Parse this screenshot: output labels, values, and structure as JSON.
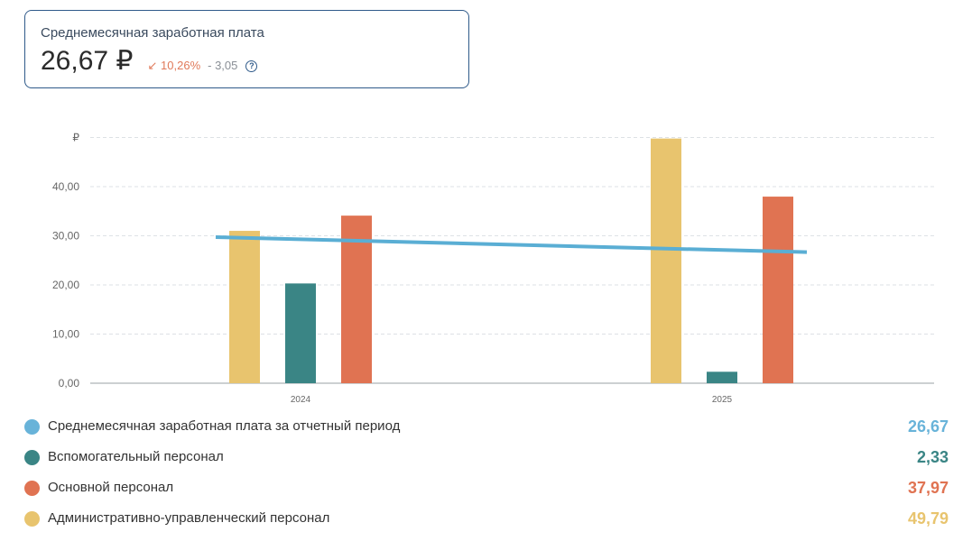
{
  "kpi": {
    "title": "Среднемесячная заработная плата",
    "value": "26,67 ₽",
    "delta_percent": "10,26%",
    "delta_arrow": "↙",
    "delta_abs": "- 3,05",
    "help_icon": "question-circle-icon"
  },
  "chart_data": {
    "type": "bar",
    "categories": [
      "2024",
      "2025"
    ],
    "y_unit": "₽",
    "y_ticks": [
      "0,00",
      "10,00",
      "20,00",
      "30,00",
      "40,00"
    ],
    "ylim": [
      0,
      50
    ],
    "grid": true,
    "series": [
      {
        "name": "Административно-управленческий персонал",
        "values": [
          31.0,
          49.79
        ],
        "color": "#e8c46e"
      },
      {
        "name": "Вспомогательный персонал",
        "values": [
          20.3,
          2.33
        ],
        "color": "#3a8585"
      },
      {
        "name": "Основной персонал",
        "values": [
          34.1,
          37.97
        ],
        "color": "#e07352"
      }
    ],
    "line_series": {
      "name": "Среднемесячная заработная плата за отчетный период",
      "values": [
        29.72,
        26.67
      ],
      "color": "#5aaed4"
    }
  },
  "legend": [
    {
      "label": "Среднемесячная заработная плата за отчетный период",
      "value": "26,67",
      "color": "#68b3d9"
    },
    {
      "label": "Вспомогательный персонал",
      "value": "2,33",
      "color": "#3a8585"
    },
    {
      "label": "Основной персонал",
      "value": "37,97",
      "color": "#e07352"
    },
    {
      "label": "Административно-управленческий персонал",
      "value": "49,79",
      "color": "#e8c46e"
    }
  ]
}
